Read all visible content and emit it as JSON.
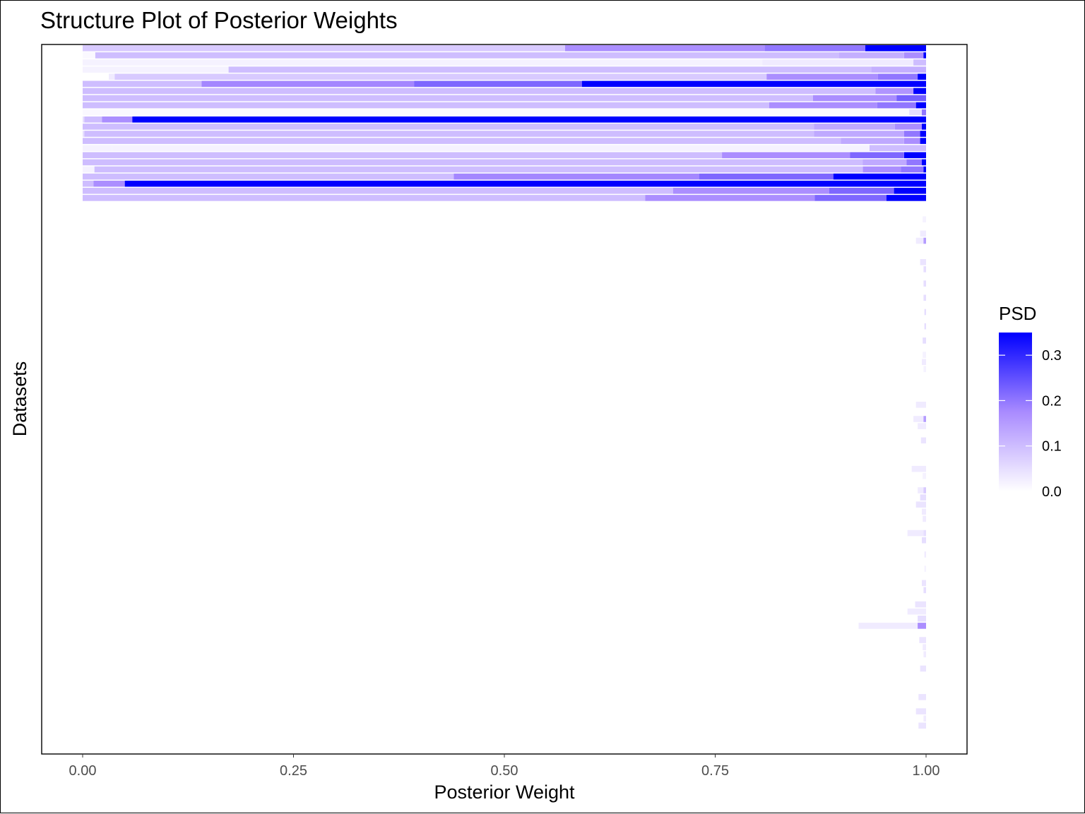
{
  "chart_data": {
    "type": "bar",
    "orientation": "horizontal-stacked",
    "title": "Structure Plot of Posterior Weights",
    "xlabel": "Posterior Weight",
    "ylabel": "Datasets",
    "xlim": [
      0,
      1
    ],
    "x_ticks": [
      "0.00",
      "0.25",
      "0.50",
      "0.75",
      "1.00"
    ],
    "legend": {
      "title": "PSD",
      "ticks": [
        "0.0",
        "0.1",
        "0.2",
        "0.3"
      ],
      "range": [
        0,
        0.35
      ],
      "low_color": "#ffffff",
      "high_color": "#0000ff",
      "placement": "right"
    },
    "rows": [
      {
        "segments": [
          [
            0.0,
            0.572,
            0.08
          ],
          [
            0.572,
            0.809,
            0.17
          ],
          [
            0.809,
            0.928,
            0.2
          ],
          [
            0.928,
            1.0,
            0.35
          ]
        ]
      },
      {
        "segments": [
          [
            0.0,
            0.015,
            0.01
          ],
          [
            0.015,
            0.897,
            0.1
          ],
          [
            0.897,
            0.974,
            0.12
          ],
          [
            0.974,
            0.997,
            0.17
          ],
          [
            0.997,
            1.0,
            0.35
          ]
        ]
      },
      {
        "segments": [
          [
            0.0,
            0.806,
            0.02
          ],
          [
            0.806,
            0.985,
            0.03
          ],
          [
            0.985,
            1.0,
            0.1
          ]
        ]
      },
      {
        "segments": [
          [
            0.0,
            0.173,
            0.02
          ],
          [
            0.173,
            0.935,
            0.1
          ],
          [
            0.935,
            1.0,
            0.12
          ]
        ]
      },
      {
        "segments": [
          [
            0.0,
            0.031,
            0.0
          ],
          [
            0.031,
            0.038,
            0.03
          ],
          [
            0.038,
            0.811,
            0.08
          ],
          [
            0.811,
            0.943,
            0.17
          ],
          [
            0.943,
            0.99,
            0.2
          ],
          [
            0.99,
            1.0,
            0.35
          ]
        ]
      },
      {
        "segments": [
          [
            0.0,
            0.141,
            0.1
          ],
          [
            0.141,
            0.393,
            0.18
          ],
          [
            0.393,
            0.592,
            0.22
          ],
          [
            0.592,
            1.0,
            0.35
          ]
        ]
      },
      {
        "segments": [
          [
            0.0,
            0.94,
            0.1
          ],
          [
            0.94,
            0.985,
            0.16
          ],
          [
            0.985,
            1.0,
            0.35
          ]
        ]
      },
      {
        "segments": [
          [
            0.0,
            0.866,
            0.1
          ],
          [
            0.866,
            0.965,
            0.17
          ],
          [
            0.965,
            1.0,
            0.23
          ]
        ]
      },
      {
        "segments": [
          [
            0.0,
            0.814,
            0.1
          ],
          [
            0.814,
            0.942,
            0.17
          ],
          [
            0.942,
            0.988,
            0.2
          ],
          [
            0.988,
            1.0,
            0.35
          ]
        ]
      },
      {
        "segments": [
          [
            0.0,
            0.98,
            0.01
          ],
          [
            0.98,
            0.995,
            0.05
          ],
          [
            0.995,
            1.0,
            0.2
          ]
        ]
      },
      {
        "segments": [
          [
            0.0,
            0.002,
            0.05
          ],
          [
            0.002,
            0.023,
            0.1
          ],
          [
            0.023,
            0.059,
            0.17
          ],
          [
            0.059,
            1.0,
            0.35
          ]
        ]
      },
      {
        "segments": [
          [
            0.0,
            0.867,
            0.1
          ],
          [
            0.867,
            0.963,
            0.13
          ],
          [
            0.963,
            0.995,
            0.17
          ],
          [
            0.995,
            1.0,
            0.35
          ]
        ]
      },
      {
        "segments": [
          [
            0.0,
            0.002,
            0.05
          ],
          [
            0.002,
            0.867,
            0.1
          ],
          [
            0.867,
            0.974,
            0.13
          ],
          [
            0.974,
            0.993,
            0.2
          ],
          [
            0.993,
            1.0,
            0.35
          ]
        ]
      },
      {
        "segments": [
          [
            0.0,
            0.899,
            0.1
          ],
          [
            0.899,
            0.974,
            0.13
          ],
          [
            0.974,
            0.993,
            0.17
          ],
          [
            0.993,
            1.0,
            0.35
          ]
        ]
      },
      {
        "segments": [
          [
            0.0,
            0.035,
            0.02
          ],
          [
            0.035,
            0.933,
            0.02
          ],
          [
            0.933,
            1.0,
            0.1
          ]
        ]
      },
      {
        "segments": [
          [
            0.0,
            0.758,
            0.1
          ],
          [
            0.758,
            0.91,
            0.17
          ],
          [
            0.91,
            0.974,
            0.22
          ],
          [
            0.974,
            1.0,
            0.35
          ]
        ]
      },
      {
        "segments": [
          [
            0.0,
            0.925,
            0.1
          ],
          [
            0.925,
            0.977,
            0.13
          ],
          [
            0.977,
            0.995,
            0.2
          ],
          [
            0.995,
            1.0,
            0.35
          ]
        ]
      },
      {
        "segments": [
          [
            0.0,
            0.014,
            0.02
          ],
          [
            0.014,
            0.925,
            0.1
          ],
          [
            0.925,
            0.97,
            0.17
          ],
          [
            0.97,
            0.997,
            0.2
          ],
          [
            0.997,
            1.0,
            0.35
          ]
        ]
      },
      {
        "segments": [
          [
            0.0,
            0.44,
            0.1
          ],
          [
            0.44,
            0.731,
            0.18
          ],
          [
            0.731,
            0.89,
            0.22
          ],
          [
            0.89,
            1.0,
            0.35
          ]
        ]
      },
      {
        "segments": [
          [
            0.0,
            0.013,
            0.1
          ],
          [
            0.013,
            0.05,
            0.17
          ],
          [
            0.05,
            1.0,
            0.35
          ]
        ]
      },
      {
        "segments": [
          [
            0.0,
            0.7,
            0.1
          ],
          [
            0.7,
            0.885,
            0.17
          ],
          [
            0.885,
            0.962,
            0.22
          ],
          [
            0.962,
            1.0,
            0.35
          ]
        ]
      },
      {
        "segments": [
          [
            0.0,
            0.667,
            0.1
          ],
          [
            0.667,
            0.868,
            0.17
          ],
          [
            0.868,
            0.953,
            0.22
          ],
          [
            0.953,
            1.0,
            0.35
          ]
        ]
      },
      {
        "segments": []
      },
      {
        "segments": []
      },
      {
        "segments": [
          [
            0.996,
            1.0,
            0.02
          ]
        ]
      },
      {
        "segments": []
      },
      {
        "segments": [
          [
            0.993,
            1.0,
            0.03
          ]
        ]
      },
      {
        "segments": [
          [
            0.988,
            0.997,
            0.03
          ],
          [
            0.997,
            1.0,
            0.15
          ]
        ]
      },
      {
        "segments": []
      },
      {
        "segments": []
      },
      {
        "segments": [
          [
            0.993,
            1.0,
            0.04
          ]
        ]
      },
      {
        "segments": [
          [
            0.997,
            1.0,
            0.05
          ]
        ]
      },
      {
        "segments": []
      },
      {
        "segments": [
          [
            0.997,
            1.0,
            0.05
          ]
        ]
      },
      {
        "segments": []
      },
      {
        "segments": [
          [
            0.997,
            1.0,
            0.05
          ]
        ]
      },
      {
        "segments": []
      },
      {
        "segments": [
          [
            0.998,
            1.0,
            0.05
          ]
        ]
      },
      {
        "segments": []
      },
      {
        "segments": [
          [
            0.998,
            1.0,
            0.05
          ]
        ]
      },
      {
        "segments": []
      },
      {
        "segments": [
          [
            0.996,
            1.0,
            0.05
          ]
        ]
      },
      {
        "segments": []
      },
      {
        "segments": [
          [
            0.996,
            1.0,
            0.02
          ]
        ]
      },
      {
        "segments": [
          [
            0.995,
            1.0,
            0.03
          ]
        ]
      },
      {
        "segments": [
          [
            0.997,
            1.0,
            0.02
          ]
        ]
      },
      {
        "segments": []
      },
      {
        "segments": []
      },
      {
        "segments": []
      },
      {
        "segments": []
      },
      {
        "segments": [
          [
            0.988,
            1.0,
            0.03
          ]
        ]
      },
      {
        "segments": []
      },
      {
        "segments": [
          [
            0.985,
            0.997,
            0.03
          ],
          [
            0.997,
            1.0,
            0.15
          ]
        ]
      },
      {
        "segments": [
          [
            0.99,
            1.0,
            0.03
          ]
        ]
      },
      {
        "segments": []
      },
      {
        "segments": [
          [
            0.994,
            1.0,
            0.04
          ]
        ]
      },
      {
        "segments": []
      },
      {
        "segments": []
      },
      {
        "segments": []
      },
      {
        "segments": [
          [
            0.983,
            1.0,
            0.03
          ]
        ]
      },
      {
        "segments": [
          [
            0.996,
            1.0,
            0.02
          ]
        ]
      },
      {
        "segments": []
      },
      {
        "segments": [
          [
            0.99,
            0.997,
            0.03
          ],
          [
            0.997,
            1.0,
            0.08
          ]
        ]
      },
      {
        "segments": [
          [
            0.993,
            1.0,
            0.05
          ]
        ]
      },
      {
        "segments": [
          [
            0.988,
            1.0,
            0.04
          ]
        ]
      },
      {
        "segments": [
          [
            0.995,
            1.0,
            0.03
          ]
        ]
      },
      {
        "segments": [
          [
            0.996,
            1.0,
            0.03
          ]
        ]
      },
      {
        "segments": []
      },
      {
        "segments": [
          [
            0.978,
            0.997,
            0.03
          ],
          [
            0.997,
            1.0,
            0.05
          ]
        ]
      },
      {
        "segments": [
          [
            0.995,
            1.0,
            0.05
          ]
        ]
      },
      {
        "segments": []
      },
      {
        "segments": [
          [
            0.998,
            1.0,
            0.03
          ]
        ]
      },
      {
        "segments": []
      },
      {
        "segments": [
          [
            0.998,
            1.0,
            0.02
          ]
        ]
      },
      {
        "segments": []
      },
      {
        "segments": [
          [
            0.995,
            1.0,
            0.04
          ]
        ]
      },
      {
        "segments": [
          [
            0.997,
            1.0,
            0.05
          ]
        ]
      },
      {
        "segments": []
      },
      {
        "segments": [
          [
            0.987,
            1.0,
            0.04
          ]
        ]
      },
      {
        "segments": [
          [
            0.978,
            1.0,
            0.03
          ]
        ]
      },
      {
        "segments": [
          [
            0.99,
            1.0,
            0.05
          ]
        ]
      },
      {
        "segments": [
          [
            0.92,
            0.99,
            0.03
          ],
          [
            0.99,
            1.0,
            0.17
          ]
        ]
      },
      {
        "segments": []
      },
      {
        "segments": [
          [
            0.992,
            1.0,
            0.04
          ]
        ]
      },
      {
        "segments": [
          [
            0.996,
            1.0,
            0.03
          ]
        ]
      },
      {
        "segments": [
          [
            0.997,
            1.0,
            0.03
          ]
        ]
      },
      {
        "segments": []
      },
      {
        "segments": [
          [
            0.993,
            1.0,
            0.04
          ]
        ]
      },
      {
        "segments": []
      },
      {
        "segments": []
      },
      {
        "segments": []
      },
      {
        "segments": [
          [
            0.991,
            1.0,
            0.04
          ]
        ]
      },
      {
        "segments": []
      },
      {
        "segments": [
          [
            0.988,
            1.0,
            0.04
          ]
        ]
      },
      {
        "segments": [
          [
            0.997,
            1.0,
            0.03
          ]
        ]
      },
      {
        "segments": [
          [
            0.991,
            1.0,
            0.04
          ]
        ]
      },
      {
        "segments": []
      }
    ]
  }
}
